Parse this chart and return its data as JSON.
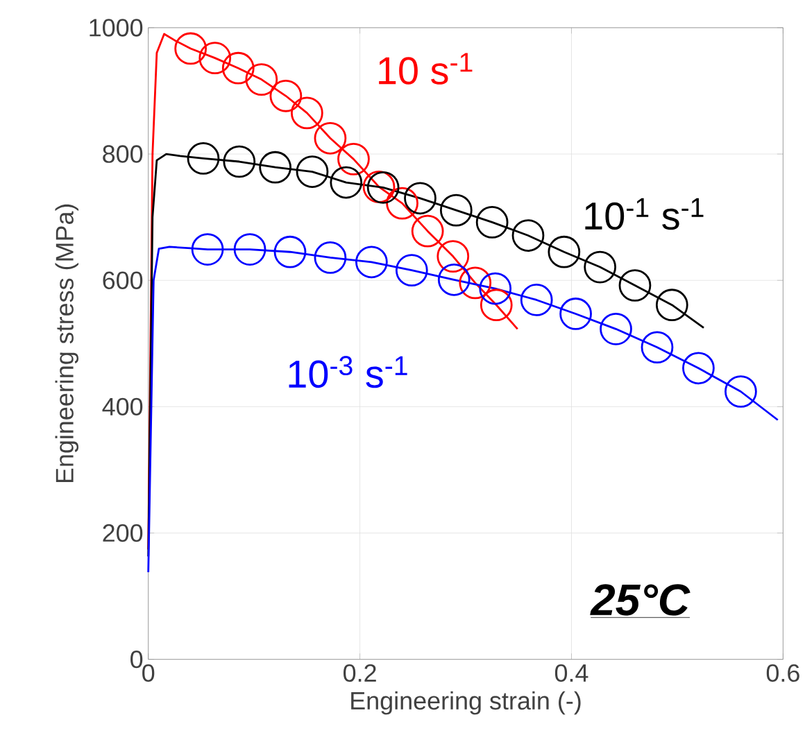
{
  "chart_data": {
    "type": "line",
    "xlabel": "Engineering strain (-)",
    "ylabel": "Engineering stress (MPa)",
    "xlim": [
      0,
      0.6
    ],
    "ylim": [
      0,
      1000
    ],
    "xticks": [
      0,
      0.2,
      0.4,
      0.6
    ],
    "yticks": [
      0,
      200,
      400,
      600,
      800,
      1000
    ],
    "grid": true,
    "line_style": "solid",
    "annotations": [
      "25°C"
    ],
    "series": [
      {
        "name": "10 s$^{-1}$",
        "color": "#ff0000",
        "marker": "none",
        "x": [
          0,
          0.004,
          0.008,
          0.015,
          0.025,
          0.04,
          0.063,
          0.085,
          0.107,
          0.13,
          0.15,
          0.172,
          0.194,
          0.218,
          0.24,
          0.264,
          0.288,
          0.309,
          0.329,
          0.349
        ],
        "values": [
          174,
          800,
          960,
          990,
          980,
          967,
          952,
          936,
          918,
          892,
          865,
          825,
          792,
          748,
          722,
          678,
          638,
          596,
          561,
          523
        ]
      },
      {
        "type": "scatter",
        "color": "#ff0000",
        "marker": "circle",
        "x": [
          0.04,
          0.063,
          0.085,
          0.107,
          0.13,
          0.15,
          0.172,
          0.194,
          0.218,
          0.24,
          0.264,
          0.288,
          0.309,
          0.329
        ],
        "values": [
          967,
          952,
          936,
          918,
          892,
          865,
          825,
          792,
          748,
          722,
          678,
          638,
          596,
          561
        ]
      },
      {
        "name": "10$^{-1}$ s$^{-1}$",
        "color": "#000000",
        "marker": "none",
        "x": [
          0,
          0.004,
          0.008,
          0.017,
          0.03,
          0.052,
          0.086,
          0.12,
          0.155,
          0.187,
          0.222,
          0.257,
          0.291,
          0.325,
          0.359,
          0.393,
          0.427,
          0.46,
          0.495,
          0.525
        ],
        "values": [
          163,
          700,
          790,
          800,
          797,
          793,
          788,
          779,
          772,
          755,
          747,
          730,
          711,
          692,
          671,
          645,
          621,
          592,
          561,
          525
        ]
      },
      {
        "type": "scatter",
        "color": "#000000",
        "marker": "circle",
        "x": [
          0.052,
          0.086,
          0.12,
          0.155,
          0.187,
          0.222,
          0.257,
          0.291,
          0.325,
          0.359,
          0.393,
          0.427,
          0.46,
          0.495
        ],
        "values": [
          793,
          788,
          779,
          772,
          755,
          747,
          730,
          711,
          692,
          671,
          645,
          621,
          592,
          561
        ]
      },
      {
        "name": "10$^{-3}$ s$^{-1}$",
        "color": "#0000ff",
        "marker": "none",
        "x": [
          0,
          0.005,
          0.01,
          0.02,
          0.04,
          0.056,
          0.096,
          0.134,
          0.172,
          0.211,
          0.249,
          0.289,
          0.328,
          0.367,
          0.404,
          0.442,
          0.481,
          0.52,
          0.56,
          0.595
        ],
        "values": [
          138,
          600,
          650,
          653,
          651,
          649,
          649,
          645,
          636,
          629,
          616,
          601,
          587,
          569,
          547,
          523,
          494,
          461,
          424,
          379
        ]
      },
      {
        "type": "scatter",
        "color": "#0000ff",
        "marker": "circle",
        "x": [
          0.056,
          0.096,
          0.134,
          0.172,
          0.211,
          0.249,
          0.289,
          0.328,
          0.367,
          0.404,
          0.442,
          0.481,
          0.52,
          0.56
        ],
        "values": [
          649,
          649,
          645,
          636,
          629,
          616,
          601,
          587,
          569,
          547,
          523,
          494,
          461,
          424
        ]
      }
    ]
  }
}
